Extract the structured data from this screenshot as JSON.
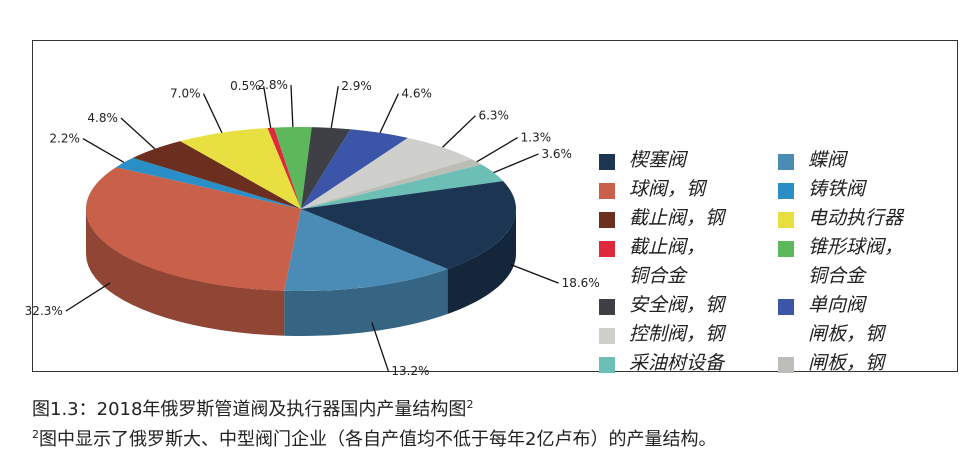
{
  "chart_data": {
    "type": "pie",
    "title": "图1.3：2018年俄罗斯管道阀及执行器国内产量结构图",
    "title_sup": "2",
    "footnote_sup": "2",
    "footnote": "图中显示了俄罗斯大、中型阀门企业（各自产值均不低于每年2亿卢布）的产量结构。",
    "legend_placement": "right",
    "slices": [
      {
        "name": "截止阀，\n铜合金",
        "value": 0.5,
        "label": "0.5%",
        "color": "#e0283c"
      },
      {
        "name": "锥形球阀，\n铜合金",
        "value": 2.8,
        "label": "2.8%",
        "color": "#5cb85a"
      },
      {
        "name": "安全阀，钢",
        "value": 2.9,
        "label": "2.9%",
        "color": "#3f4046"
      },
      {
        "name": "单向阀\n闸板，钢",
        "value": 4.6,
        "label": "4.6%",
        "color": "#3b56a8"
      },
      {
        "name": "控制阀，钢",
        "value": 6.3,
        "label": "6.3%",
        "color": "#cfcfcb"
      },
      {
        "name": "闸板，钢",
        "value": 1.3,
        "label": "1.3%",
        "color": "#bdbdb8"
      },
      {
        "name": "采油树设备",
        "value": 3.6,
        "label": "3.6%",
        "color": "#6bbfb5"
      },
      {
        "name": "楔塞阀",
        "value": 18.6,
        "label": "18.6%",
        "color": "#1b3552"
      },
      {
        "name": "蝶阀",
        "value": 13.2,
        "label": "13.2%",
        "color": "#4a8cb5"
      },
      {
        "name": "球阀，钢",
        "value": 32.3,
        "label": "32.3%",
        "color": "#c9604a"
      },
      {
        "name": "铸铁阀",
        "value": 2.2,
        "label": "2.2%",
        "color": "#2a8ec7"
      },
      {
        "name": "截止阀，钢",
        "value": 4.8,
        "label": "4.8%",
        "color": "#6b2e1f"
      },
      {
        "name": "电动执行器",
        "value": 7.0,
        "label": "7.0%",
        "color": "#e8e040"
      }
    ],
    "legend_left": [
      7,
      9,
      11,
      0,
      2,
      4,
      6
    ],
    "legend_right": [
      8,
      10,
      12,
      1,
      3,
      5
    ]
  }
}
